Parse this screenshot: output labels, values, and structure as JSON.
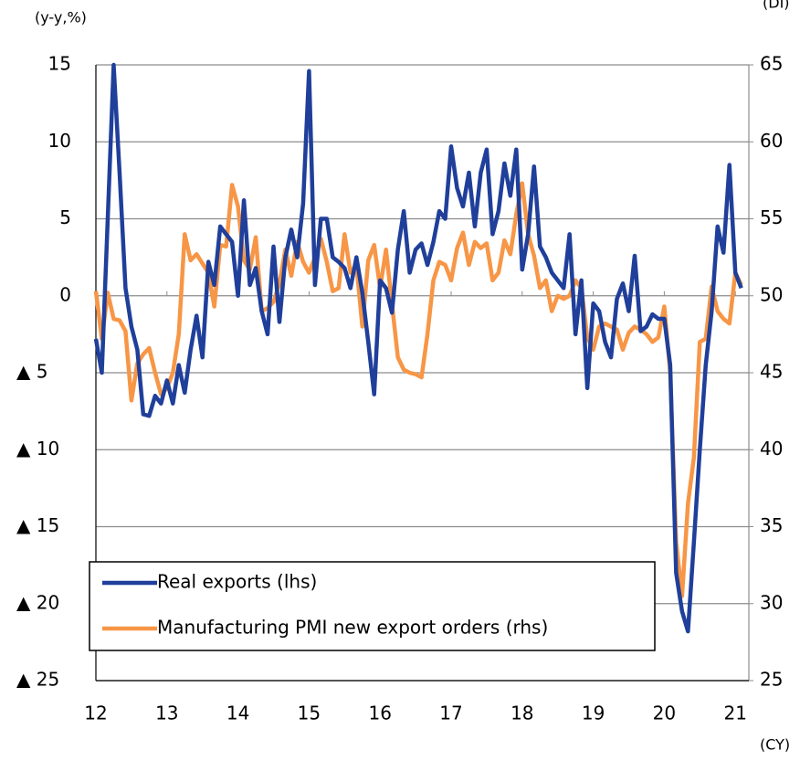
{
  "chart_data": {
    "type": "line",
    "y_label": "(y-y,%)",
    "y2_label": "(DI)",
    "x_label": "(CY)",
    "categories": [
      "12",
      null,
      null,
      null,
      null,
      null,
      null,
      null,
      null,
      null,
      null,
      null,
      "13",
      null,
      null,
      null,
      null,
      null,
      null,
      null,
      null,
      null,
      null,
      null,
      "14",
      null,
      null,
      null,
      null,
      null,
      null,
      null,
      null,
      null,
      null,
      null,
      "15",
      null,
      null,
      null,
      null,
      null,
      null,
      null,
      null,
      null,
      null,
      null,
      "16",
      null,
      null,
      null,
      null,
      null,
      null,
      null,
      null,
      null,
      null,
      null,
      "17",
      null,
      null,
      null,
      null,
      null,
      null,
      null,
      null,
      null,
      null,
      null,
      "18",
      null,
      null,
      null,
      null,
      null,
      null,
      null,
      null,
      null,
      null,
      null,
      "19",
      null,
      null,
      null,
      null,
      null,
      null,
      null,
      null,
      null,
      null,
      null,
      "20",
      null,
      null,
      null,
      null,
      null,
      null,
      null,
      null,
      null,
      null,
      null,
      "21",
      null
    ],
    "series": [
      {
        "name": "Real exports (lhs)",
        "color": "#1f3f9a",
        "axis": "y",
        "values": [
          -2.8,
          -5,
          5,
          15,
          8,
          0.5,
          -2,
          -3.5,
          -7.7,
          -7.8,
          -6.5,
          -7,
          -5.5,
          -7,
          -4.5,
          -6.3,
          -3.5,
          -1.3,
          -4,
          2.2,
          0.7,
          4.5,
          4,
          3.5,
          0,
          6.2,
          0.7,
          1.8,
          -1,
          -2.5,
          3.2,
          -1.7,
          2.5,
          4.3,
          2.5,
          6,
          14.6,
          0.7,
          5,
          5,
          2.5,
          2.2,
          1.8,
          0.5,
          2.5,
          0.2,
          -3,
          -6.4,
          1,
          0.5,
          -1.1,
          3,
          5.5,
          1.5,
          3,
          3.4,
          2,
          3.5,
          5.5,
          5,
          9.7,
          7,
          5.8,
          8,
          4.5,
          8,
          9.5,
          4,
          5.5,
          8.6,
          6.5,
          9.5,
          1.7,
          4,
          8.4,
          3.2,
          2.5,
          1.5,
          1,
          0.5,
          4,
          -2.5,
          1,
          -6,
          -0.5,
          -1,
          -3,
          -4,
          -0.2,
          0.8,
          -1,
          2.6,
          -2.3,
          -2,
          -1.2,
          -1.5,
          -1.5,
          -4.5,
          -18,
          -20.5,
          -21.8,
          -16,
          -10,
          -4.5,
          -1,
          4.5,
          2.8,
          8.5,
          1.5,
          0.5
        ]
      },
      {
        "name": "Manufacturing PMI new export orders (rhs)",
        "color": "#f79646",
        "axis": "y2",
        "values": [
          50.3,
          47.2,
          50.2,
          48.5,
          48.4,
          47.7,
          43.2,
          45.6,
          46.2,
          46.6,
          45,
          43.6,
          44,
          45,
          47.5,
          54,
          52.3,
          52.7,
          52.1,
          51.5,
          49.3,
          53.3,
          53.2,
          57.2,
          55.8,
          52.3,
          51.7,
          53.8,
          49,
          49.2,
          49.6,
          50.8,
          53,
          51.3,
          53.5,
          52.2,
          51.5,
          52.5,
          53.7,
          52.2,
          50.3,
          50.5,
          54,
          51.5,
          52,
          48,
          52.3,
          53.3,
          50.5,
          53,
          49.5,
          46,
          45.2,
          45,
          44.9,
          44.7,
          47.5,
          51,
          52.2,
          52,
          51,
          53.1,
          54.1,
          52,
          53.5,
          53.1,
          53.4,
          51,
          51.5,
          53.6,
          52.7,
          55.3,
          57.3,
          54,
          52.6,
          50.5,
          51,
          49,
          50,
          49.8,
          50,
          51,
          50.5,
          47.3,
          46.5,
          48,
          48.2,
          48,
          47.8,
          46.5,
          47.6,
          48,
          47.8,
          47.5,
          47,
          47.3,
          49.3,
          45,
          34,
          30.5,
          36.5,
          39.5,
          47,
          47.2,
          50.6,
          49,
          48.5,
          48.2,
          51.5,
          50.7
        ]
      }
    ],
    "ylim": [
      -25,
      15
    ],
    "yticks": [
      {
        "value": -25,
        "label": "▲ 25"
      },
      {
        "value": -20,
        "label": "▲ 20"
      },
      {
        "value": -15,
        "label": "▲ 15"
      },
      {
        "value": -10,
        "label": "▲ 10"
      },
      {
        "value": -5,
        "label": "▲ 5"
      },
      0,
      5,
      10,
      15
    ],
    "y2lim": [
      25,
      65
    ],
    "y2ticks": [
      25,
      30,
      35,
      40,
      45,
      50,
      55,
      60,
      65
    ],
    "grid": true
  }
}
